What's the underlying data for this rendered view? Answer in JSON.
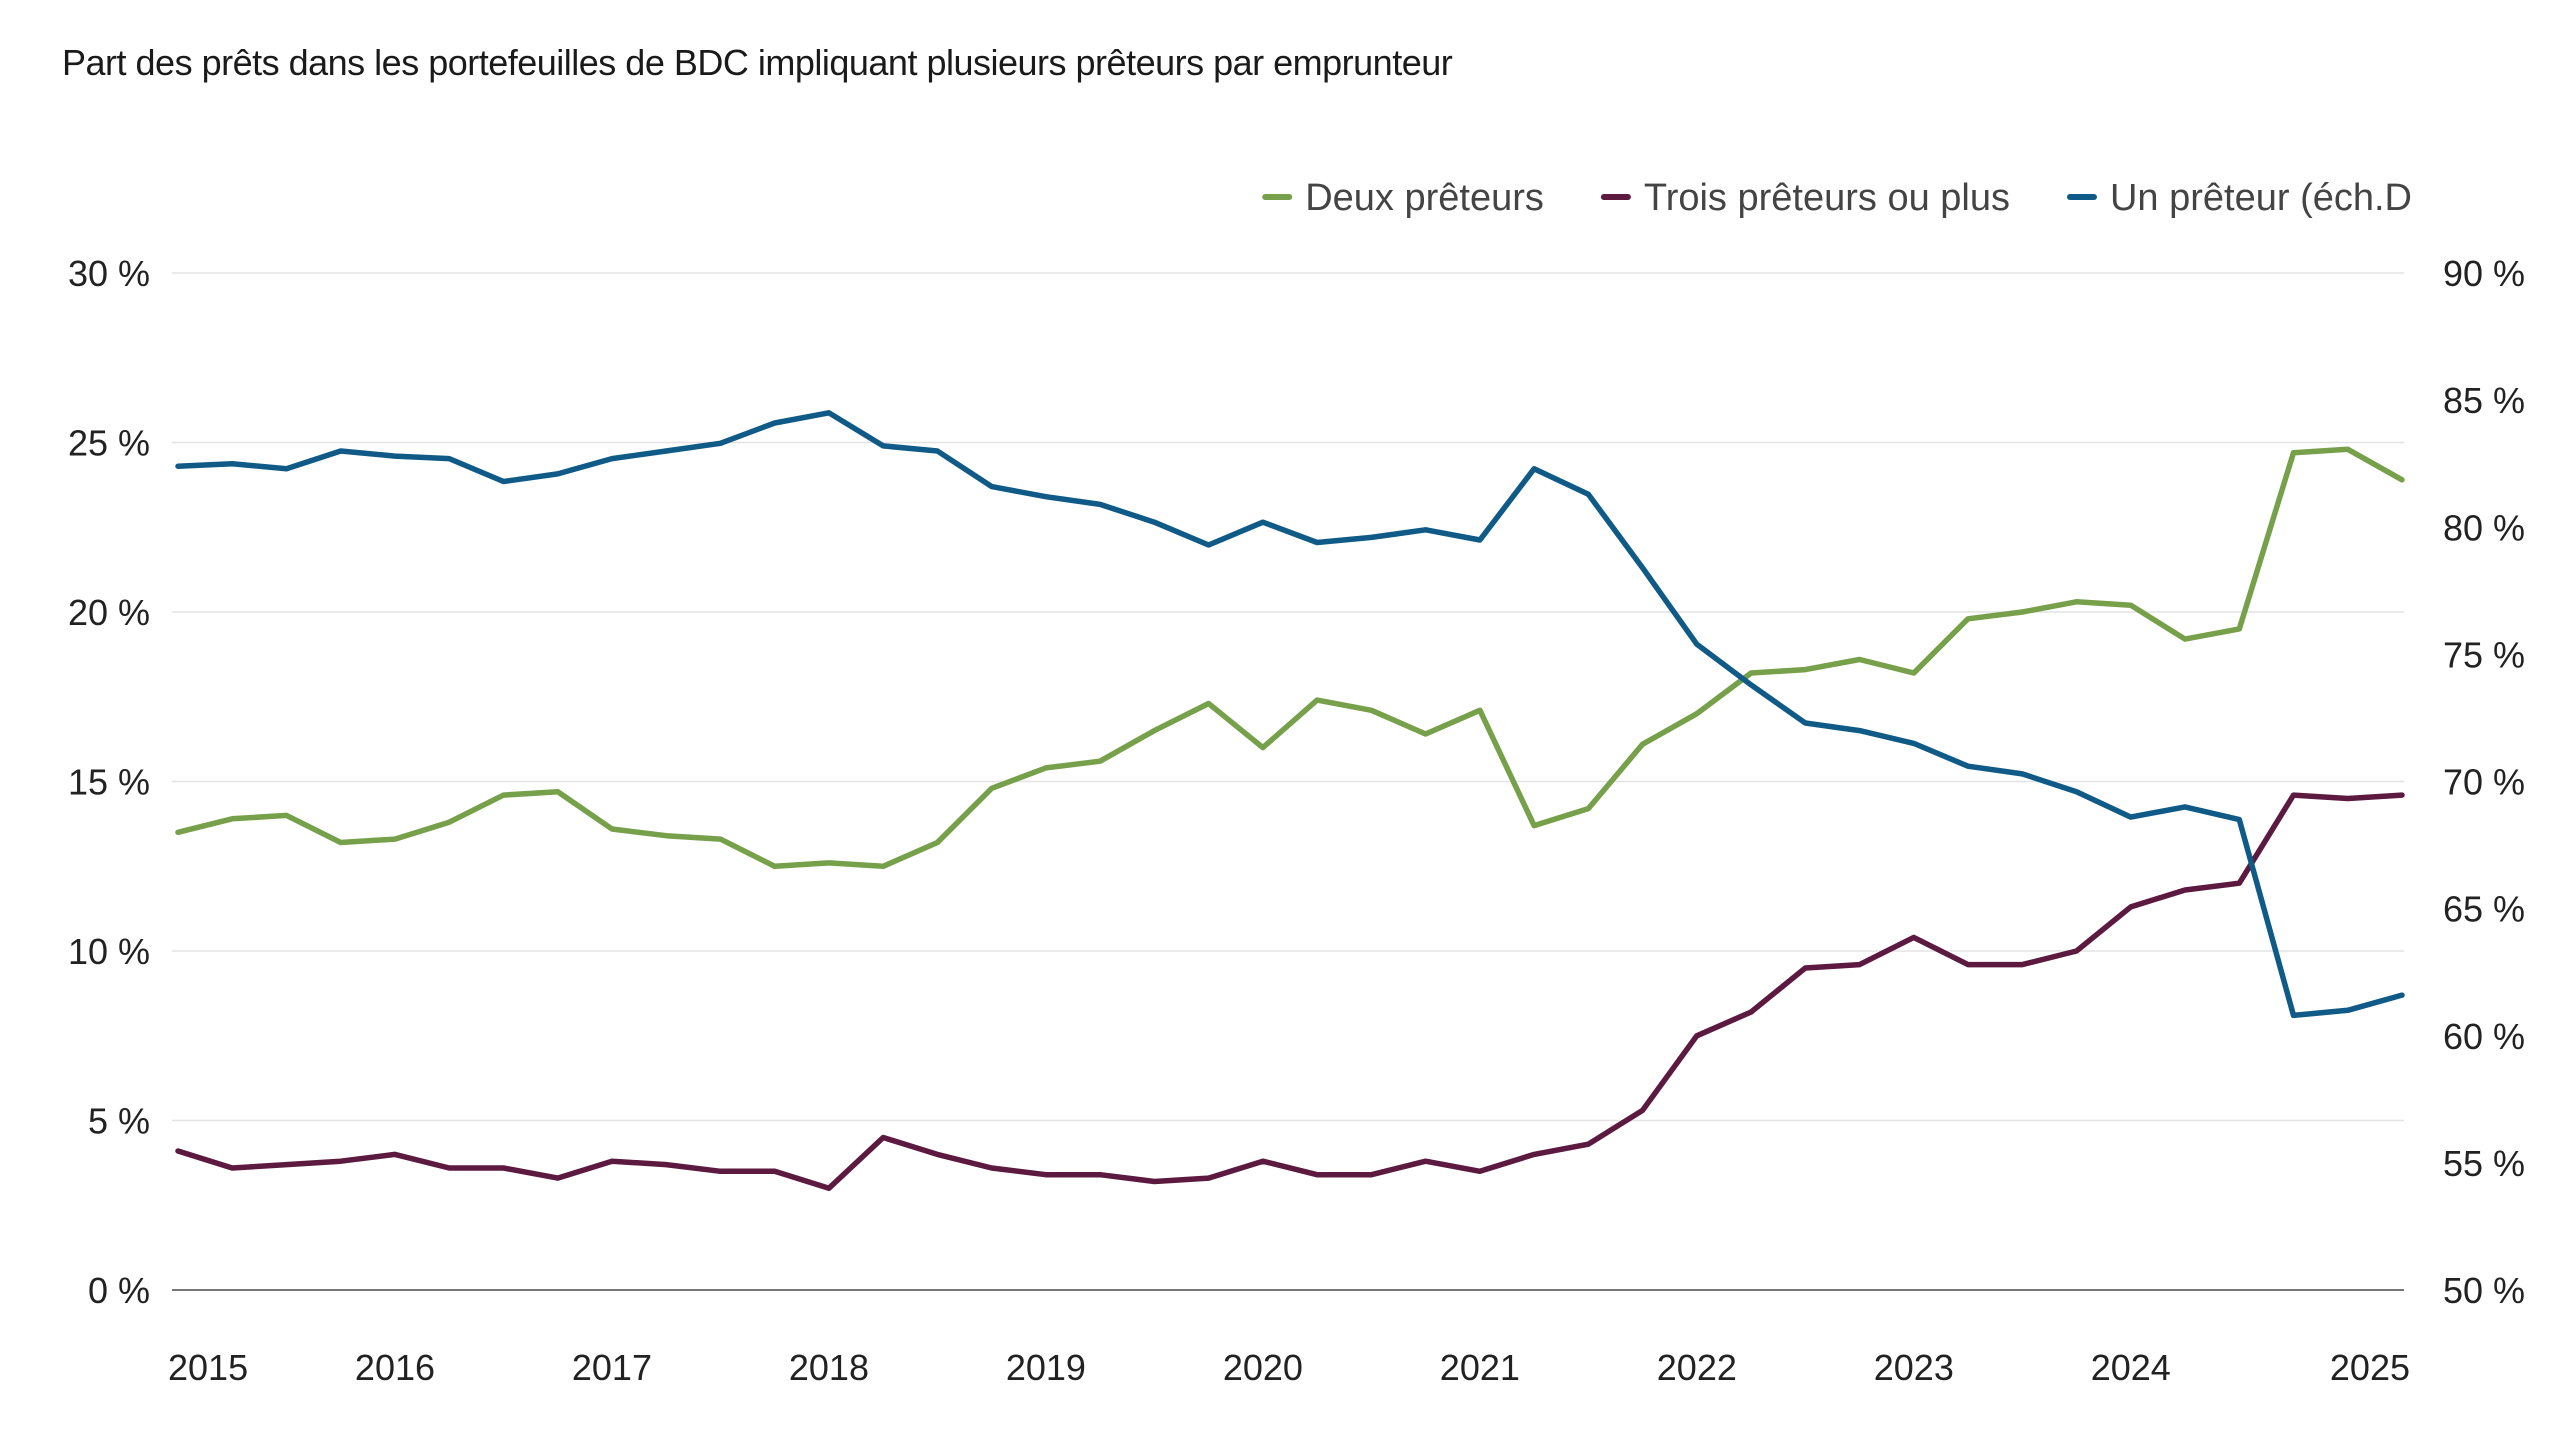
{
  "chart_data": {
    "type": "line",
    "title": "Part des prêts dans les portefeuilles de BDC impliquant plusieurs prêteurs par emprunteur",
    "xlabel": "",
    "ylabel": "",
    "x_ticks": [
      "2015",
      "2016",
      "2017",
      "2018",
      "2019",
      "2020",
      "2021",
      "2022",
      "2023",
      "2024",
      "2025"
    ],
    "y_left": {
      "ylim": [
        0,
        30
      ],
      "ticks": [
        0,
        5,
        10,
        15,
        20,
        25,
        30
      ],
      "tick_labels": [
        "0 %",
        "5 %",
        "10 %",
        "15 %",
        "20 %",
        "25 %",
        "30 %"
      ]
    },
    "y_right": {
      "ylim": [
        50,
        90
      ],
      "ticks": [
        50,
        55,
        60,
        65,
        70,
        75,
        80,
        85,
        90
      ],
      "tick_labels": [
        "50 %",
        "55 %",
        "60 %",
        "65 %",
        "70 %",
        "75 %",
        "80 %",
        "85 %",
        "90 %"
      ]
    },
    "grid": true,
    "legend_position": "top-right",
    "x": [
      2015.0,
      2015.25,
      2015.5,
      2015.75,
      2016.0,
      2016.25,
      2016.5,
      2016.75,
      2017.0,
      2017.25,
      2017.5,
      2017.75,
      2018.0,
      2018.25,
      2018.5,
      2018.75,
      2019.0,
      2019.25,
      2019.5,
      2019.75,
      2020.0,
      2020.25,
      2020.5,
      2020.75,
      2021.0,
      2021.25,
      2021.5,
      2021.75,
      2022.0,
      2022.25,
      2022.5,
      2022.75,
      2023.0,
      2023.25,
      2023.5,
      2023.75,
      2024.0,
      2024.25,
      2024.5,
      2024.75,
      2025.0,
      2025.25
    ],
    "series": [
      {
        "name": "Deux prêteurs",
        "axis": "left",
        "color": "#77a04a",
        "values": [
          13.5,
          13.9,
          14.0,
          13.2,
          13.3,
          13.8,
          14.6,
          14.7,
          13.6,
          13.4,
          13.3,
          12.5,
          12.6,
          12.5,
          13.2,
          14.8,
          15.4,
          15.6,
          16.5,
          17.3,
          16.0,
          17.4,
          17.1,
          16.4,
          17.1,
          13.7,
          14.2,
          16.1,
          17.0,
          18.2,
          18.3,
          18.6,
          18.2,
          19.8,
          20.0,
          20.3,
          20.2,
          19.2,
          19.5,
          24.7,
          24.8,
          23.9
        ]
      },
      {
        "name": "Trois prêteurs ou plus",
        "axis": "left",
        "color": "#5c1a40",
        "values": [
          4.1,
          3.6,
          3.7,
          3.8,
          4.0,
          3.6,
          3.6,
          3.3,
          3.8,
          3.7,
          3.5,
          3.5,
          3.0,
          4.5,
          4.0,
          3.6,
          3.4,
          3.4,
          3.2,
          3.3,
          3.8,
          3.4,
          3.4,
          3.8,
          3.5,
          4.0,
          4.3,
          5.3,
          7.5,
          8.2,
          9.5,
          9.6,
          10.4,
          9.6,
          9.6,
          10.0,
          11.3,
          11.8,
          12.0,
          14.6,
          14.5,
          14.6
        ]
      },
      {
        "name": "Un prêteur (éch.D",
        "axis": "right",
        "color": "#0f5a86",
        "values": [
          82.4,
          82.5,
          82.3,
          83.0,
          82.8,
          82.7,
          81.8,
          82.1,
          82.7,
          83.0,
          83.3,
          84.1,
          84.5,
          83.2,
          83.0,
          81.6,
          81.2,
          80.9,
          80.2,
          79.3,
          80.2,
          79.4,
          79.6,
          79.9,
          79.5,
          82.3,
          81.3,
          78.4,
          75.4,
          73.8,
          72.3,
          72.0,
          71.5,
          70.6,
          70.3,
          69.6,
          68.6,
          69.0,
          68.5,
          60.8,
          61.0,
          61.6
        ]
      }
    ]
  }
}
